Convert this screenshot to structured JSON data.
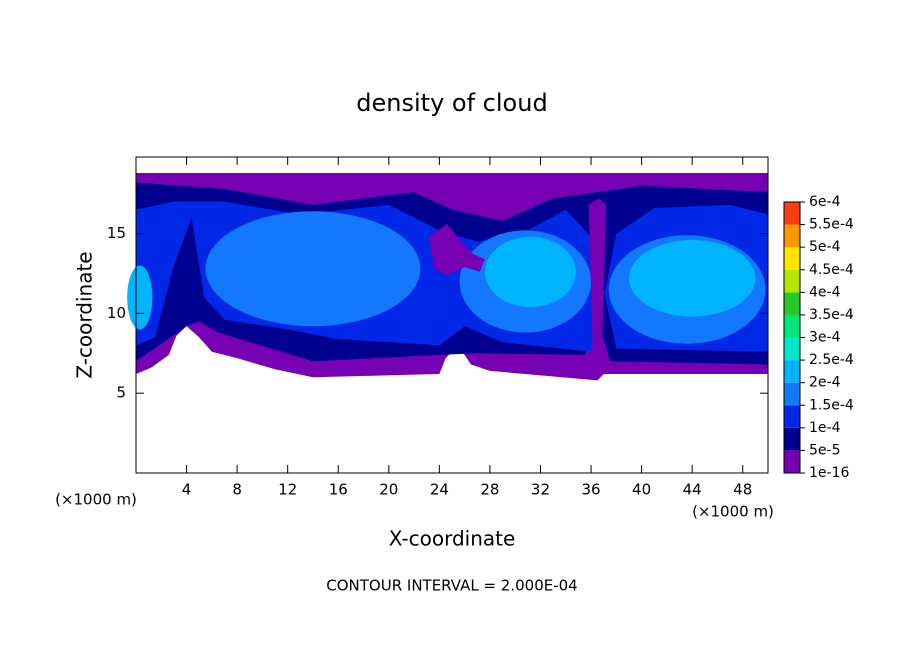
{
  "chart_data": {
    "type": "contour",
    "title": "density of cloud",
    "x_label": "X-coordinate",
    "y_label": "Z-coordinate",
    "x_unit_label": "(×1000 m)",
    "y_unit_label": "(×1000 m)",
    "annotation": "CONTOUR INTERVAL = 2.000E-04",
    "xlim": [
      0,
      50
    ],
    "ylim": [
      0,
      19.8
    ],
    "xticks": [
      4,
      8,
      12,
      16,
      20,
      24,
      28,
      32,
      36,
      40,
      44,
      48
    ],
    "yticks": [
      5,
      10,
      15
    ],
    "colorbar": {
      "levels": [
        {
          "value": 1e-16,
          "label": "1e-16"
        },
        {
          "value": 5e-05,
          "label": "5e-5"
        },
        {
          "value": 0.0001,
          "label": "1e-4"
        },
        {
          "value": 0.00015,
          "label": "1.5e-4"
        },
        {
          "value": 0.0002,
          "label": "2e-4"
        },
        {
          "value": 0.00025,
          "label": "2.5e-4"
        },
        {
          "value": 0.0003,
          "label": "3e-4"
        },
        {
          "value": 0.00035,
          "label": "3.5e-4"
        },
        {
          "value": 0.0004,
          "label": "4e-4"
        },
        {
          "value": 0.00045,
          "label": "4.5e-4"
        },
        {
          "value": 0.0005,
          "label": "5e-4"
        },
        {
          "value": 0.00055,
          "label": "5.5e-4"
        },
        {
          "value": 0.0006,
          "label": "6e-4"
        }
      ],
      "colors": [
        "#7800b4",
        "#000090",
        "#0028e6",
        "#1478ff",
        "#00b4ff",
        "#00e6c8",
        "#00e678",
        "#28c828",
        "#b4e600",
        "#ffe600",
        "#ff9600",
        "#ff3c14"
      ]
    }
  }
}
